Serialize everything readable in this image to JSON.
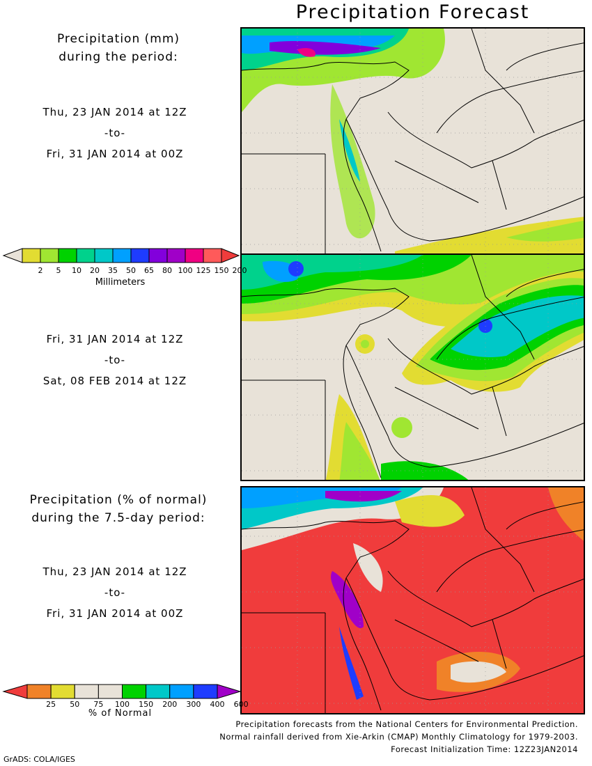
{
  "title": "Precipitation Forecast",
  "panel1": {
    "label_line1": "Precipitation (mm)",
    "label_line2": "during the period:",
    "start": "Thu, 23 JAN 2014 at 12Z",
    "to": "-to-",
    "end": "Fri, 31 JAN 2014 at 00Z"
  },
  "panel2": {
    "start": "Fri, 31 JAN 2014 at 12Z",
    "to": "-to-",
    "end": "Sat, 08 FEB 2014 at 12Z"
  },
  "panel3": {
    "label_line1": "Precipitation (% of normal)",
    "label_line2": "during the 7.5-day period:",
    "start": "Thu, 23 JAN 2014 at 12Z",
    "to": "-to-",
    "end": "Fri, 31 JAN 2014 at 00Z"
  },
  "colorbar_mm": {
    "unit": "Millimeters",
    "labels": [
      "2",
      "5",
      "10",
      "20",
      "35",
      "50",
      "65",
      "80",
      "100",
      "125",
      "150",
      "200"
    ],
    "colors": [
      "#e8e2d8",
      "#e2dc32",
      "#a0e632",
      "#00d200",
      "#00d28c",
      "#00c8c8",
      "#00a0ff",
      "#1e3cff",
      "#8200dc",
      "#a000c8",
      "#f00082",
      "#ff5a5a",
      "#f03c3c"
    ]
  },
  "colorbar_pct": {
    "unit": "% of Normal",
    "labels": [
      "25",
      "50",
      "75",
      "100",
      "150",
      "200",
      "300",
      "400",
      "600"
    ],
    "colors": [
      "#f03c3c",
      "#f08228",
      "#e2dc32",
      "#e8e2d8",
      "#e8e2d8",
      "#00d200",
      "#00c8c8",
      "#00a0ff",
      "#1e3cff",
      "#a000c8"
    ]
  },
  "credits": {
    "line1": "Precipitation forecasts from the National Centers for Environmental Prediction.",
    "line2": "Normal rainfall derived from Xie-Arkin (CMAP) Monthly Climatology for 1979-2003.",
    "line3": "Forecast Initialization Time: 12Z23JAN2014"
  },
  "software": "GrADS: COLA/IGES"
}
